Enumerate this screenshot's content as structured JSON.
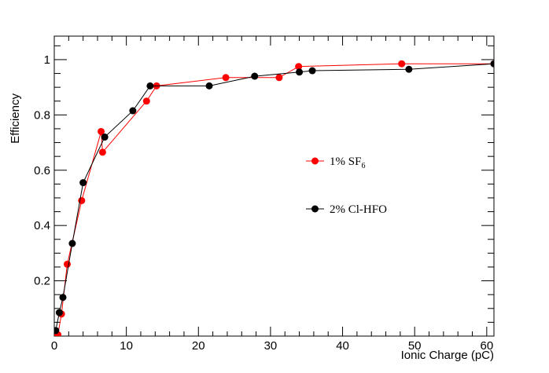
{
  "chart_data": {
    "type": "line",
    "title": "",
    "xlabel": "Ionic Charge (pC)",
    "ylabel": "Efficiency",
    "xlim": [
      0,
      61
    ],
    "ylim": [
      0,
      1.085
    ],
    "x_ticks": [
      0,
      10,
      20,
      30,
      40,
      50,
      60
    ],
    "y_ticks": [
      0.2,
      0.4,
      0.6,
      0.8,
      1
    ],
    "x_tick_labels": [
      "0",
      "10",
      "20",
      "30",
      "40",
      "50",
      "60"
    ],
    "y_tick_labels": [
      "0.2",
      "0.4",
      "0.6",
      "0.8",
      "1"
    ],
    "grid": false,
    "legend_position": "center-right",
    "series": [
      {
        "name": "1% SF6",
        "legend_base": "1% SF",
        "legend_sub": "6",
        "color": "#ff0000",
        "x": [
          0.5,
          1.0,
          1.8,
          3.8,
          6.5,
          6.7,
          12.8,
          14.2,
          23.8,
          31.2,
          33.9,
          48.2,
          61.0
        ],
        "y": [
          0.005,
          0.08,
          0.26,
          0.49,
          0.74,
          0.665,
          0.85,
          0.905,
          0.935,
          0.935,
          0.975,
          0.985,
          0.985
        ]
      },
      {
        "name": "2% Cl-HFO",
        "color": "#000000",
        "x": [
          0.2,
          0.7,
          1.2,
          2.5,
          4.0,
          7.0,
          10.9,
          13.3,
          21.5,
          27.8,
          34.0,
          35.8,
          49.2,
          61.0
        ],
        "y": [
          0.02,
          0.085,
          0.14,
          0.335,
          0.555,
          0.72,
          0.815,
          0.905,
          0.905,
          0.94,
          0.955,
          0.96,
          0.965,
          0.985
        ]
      }
    ]
  }
}
